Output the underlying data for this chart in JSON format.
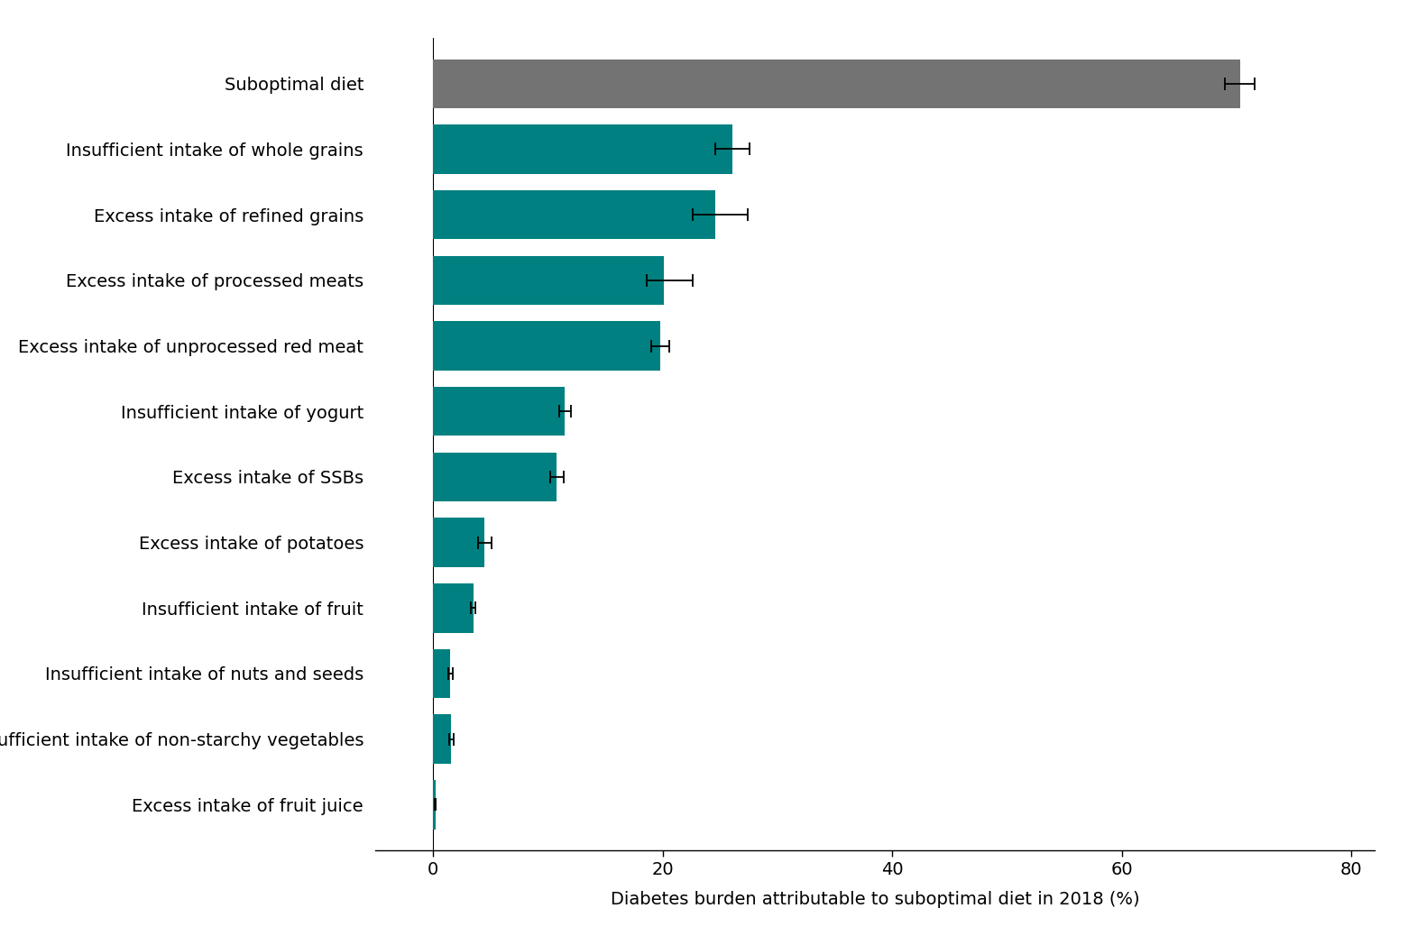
{
  "categories": [
    "Suboptimal diet",
    "Insufficient intake of whole grains",
    "Excess intake of refined grains",
    "Excess intake of processed meats",
    "Excess intake of unprocessed red meat",
    "Insufficient intake of yogurt",
    "Excess intake of SSBs",
    "Excess intake of potatoes",
    "Insufficient intake of fruit",
    "Insufficient intake of nuts and seeds",
    "Insufficient intake of non-starchy vegetables",
    "Excess intake of fruit juice"
  ],
  "values": [
    70.3,
    26.1,
    24.6,
    20.1,
    19.8,
    11.5,
    10.8,
    4.5,
    3.5,
    1.5,
    1.6,
    0.2
  ],
  "errors_low": [
    1.3,
    1.5,
    2.0,
    1.5,
    0.8,
    0.5,
    0.6,
    0.6,
    0.2,
    0.2,
    0.2,
    0.05
  ],
  "errors_high": [
    1.3,
    1.5,
    2.8,
    2.5,
    0.8,
    0.5,
    0.6,
    0.6,
    0.2,
    0.2,
    0.2,
    0.05
  ],
  "bar_colors": [
    "#737373",
    "#008080",
    "#008080",
    "#008080",
    "#008080",
    "#008080",
    "#008080",
    "#008080",
    "#008080",
    "#008080",
    "#008080",
    "#008080"
  ],
  "xlabel": "Diabetes burden attributable to suboptimal diet in 2018 (%)",
  "xlim": [
    -5,
    82
  ],
  "xticks": [
    0,
    20,
    40,
    60,
    80
  ],
  "background_color": "#ffffff",
  "bar_height": 0.75,
  "figsize": [
    15.71,
    10.48
  ],
  "dpi": 100,
  "label_fontsize": 14,
  "tick_fontsize": 14
}
